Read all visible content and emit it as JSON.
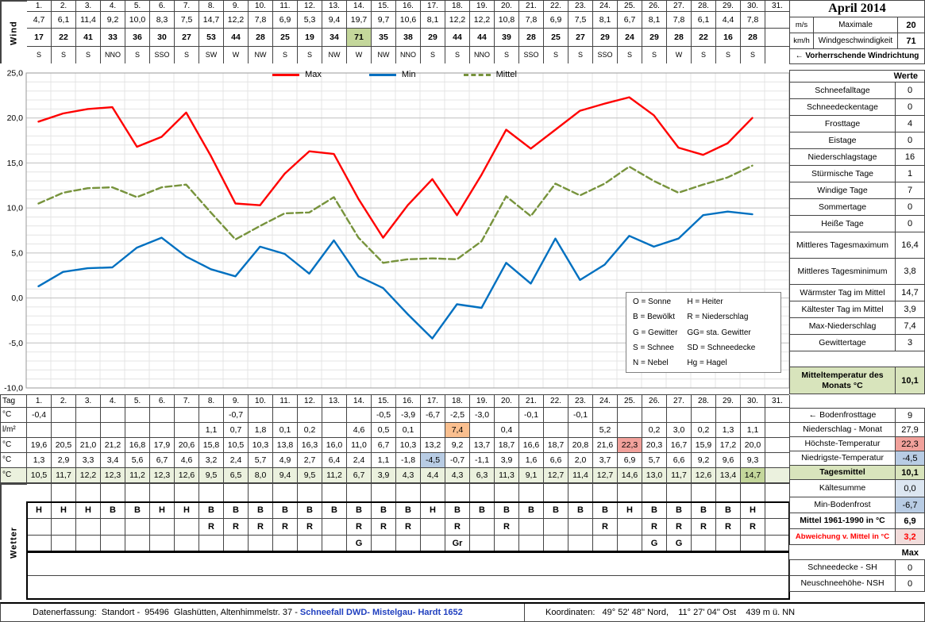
{
  "month_title": "April 2014",
  "row_labels": {
    "wind": "Wind",
    "tag": "Tag",
    "celsius": "°C",
    "lm2": "l/m²",
    "wetter": "Wetter"
  },
  "days": [
    "1.",
    "2.",
    "3.",
    "4.",
    "5.",
    "6.",
    "7.",
    "8.",
    "9.",
    "10.",
    "11.",
    "12.",
    "13.",
    "14.",
    "15.",
    "16.",
    "17.",
    "18.",
    "19.",
    "20.",
    "21.",
    "22.",
    "23.",
    "24.",
    "25.",
    "26.",
    "27.",
    "28.",
    "29.",
    "30.",
    "31."
  ],
  "wind": {
    "ms_unit": "m/s",
    "kmh_unit": "km/h",
    "max_label1": "Maximale",
    "max_label2": "Windgeschwindigkeit",
    "max_ms": "20",
    "max_kmh": "71",
    "dir_note": "← Vorherrschende Windrichtung",
    "ms": [
      "4,7",
      "6,1",
      "11,4",
      "9,2",
      "10,0",
      "8,3",
      "7,5",
      "14,7",
      "12,2",
      "7,8",
      "6,9",
      "5,3",
      "9,4",
      "19,7",
      "9,7",
      "10,6",
      "8,1",
      "12,2",
      "12,2",
      "10,8",
      "7,8",
      "6,9",
      "7,5",
      "8,1",
      "6,7",
      "8,1",
      "7,8",
      "6,1",
      "4,4",
      "7,8",
      ""
    ],
    "kmh": [
      "17",
      "22",
      "41",
      "33",
      "36",
      "30",
      "27",
      "53",
      "44",
      "28",
      "25",
      "19",
      "34",
      "71",
      "35",
      "38",
      "29",
      "44",
      "44",
      "39",
      "28",
      "25",
      "27",
      "29",
      "24",
      "29",
      "28",
      "22",
      "16",
      "28",
      ""
    ],
    "dir": [
      "S",
      "S",
      "S",
      "NNO",
      "S",
      "SSO",
      "S",
      "SW",
      "W",
      "NW",
      "S",
      "S",
      "NW",
      "W",
      "NW",
      "NNO",
      "S",
      "S",
      "NNO",
      "S",
      "SSO",
      "S",
      "S",
      "SSO",
      "S",
      "S",
      "W",
      "S",
      "S",
      "S",
      ""
    ]
  },
  "daily": {
    "bodenfrost": [
      "-0,4",
      "",
      "",
      "",
      "",
      "",
      "",
      "",
      "-0,7",
      "",
      "",
      "",
      "",
      "",
      "-0,5",
      "-3,9",
      "-6,7",
      "-2,5",
      "-3,0",
      "",
      "-0,1",
      "",
      "-0,1",
      "",
      "",
      "",
      "",
      "",
      "",
      "",
      ""
    ],
    "precip": [
      "",
      "",
      "",
      "",
      "",
      "",
      "",
      "1,1",
      "0,7",
      "1,8",
      "0,1",
      "0,2",
      "",
      "4,6",
      "0,5",
      "0,1",
      "",
      "7,4",
      "",
      "0,4",
      "",
      "",
      "",
      "5,2",
      "",
      "0,2",
      "3,0",
      "0,2",
      "1,3",
      "1,1",
      ""
    ],
    "tmax": [
      "19,6",
      "20,5",
      "21,0",
      "21,2",
      "16,8",
      "17,9",
      "20,6",
      "15,8",
      "10,5",
      "10,3",
      "13,8",
      "16,3",
      "16,0",
      "11,0",
      "6,7",
      "10,3",
      "13,2",
      "9,2",
      "13,7",
      "18,7",
      "16,6",
      "18,7",
      "20,8",
      "21,6",
      "22,3",
      "20,3",
      "16,7",
      "15,9",
      "17,2",
      "20,0",
      ""
    ],
    "tmin": [
      "1,3",
      "2,9",
      "3,3",
      "3,4",
      "5,6",
      "6,7",
      "4,6",
      "3,2",
      "2,4",
      "5,7",
      "4,9",
      "2,7",
      "6,4",
      "2,4",
      "1,1",
      "-1,8",
      "-4,5",
      "-0,7",
      "-1,1",
      "3,9",
      "1,6",
      "6,6",
      "2,0",
      "3,7",
      "6,9",
      "5,7",
      "6,6",
      "9,2",
      "9,6",
      "9,3",
      ""
    ],
    "tmittel": [
      "10,5",
      "11,7",
      "12,2",
      "12,3",
      "11,2",
      "12,3",
      "12,6",
      "9,5",
      "6,5",
      "8,0",
      "9,4",
      "9,5",
      "11,2",
      "6,7",
      "3,9",
      "4,3",
      "4,4",
      "4,3",
      "6,3",
      "11,3",
      "9,1",
      "12,7",
      "11,4",
      "12,7",
      "14,6",
      "13,0",
      "11,7",
      "12,6",
      "13,4",
      "14,7",
      ""
    ]
  },
  "weather": {
    "sky": [
      "H",
      "H",
      "H",
      "B",
      "B",
      "H",
      "H",
      "B",
      "B",
      "B",
      "B",
      "B",
      "B",
      "B",
      "B",
      "B",
      "H",
      "B",
      "B",
      "B",
      "B",
      "B",
      "B",
      "B",
      "H",
      "B",
      "B",
      "B",
      "B",
      "H",
      ""
    ],
    "rain": [
      "",
      "",
      "",
      "",
      "",
      "",
      "",
      "R",
      "R",
      "R",
      "R",
      "R",
      "",
      "R",
      "R",
      "R",
      "",
      "R",
      "",
      "R",
      "",
      "",
      "",
      "R",
      "",
      "R",
      "R",
      "R",
      "R",
      "R",
      ""
    ],
    "gewitter": [
      "",
      "",
      "",
      "",
      "",
      "",
      "",
      "",
      "",
      "",
      "",
      "",
      "",
      "G",
      "",
      "",
      "",
      "Gr",
      "",
      "",
      "",
      "",
      "",
      "",
      "",
      "G",
      "G",
      "",
      "",
      "",
      ""
    ]
  },
  "highlights": {
    "kmh_max_day": 14,
    "precip_max_day": 18,
    "tmax_max_day": 25,
    "tmin_min_day": 17,
    "tmittel_max_day": 30
  },
  "stats": {
    "header": "Werte",
    "rows": [
      {
        "label": "Schneefalltage",
        "value": "0"
      },
      {
        "label": "Schneedeckentage",
        "value": "0"
      },
      {
        "label": "Frosttage",
        "value": "4"
      },
      {
        "label": "Eistage",
        "value": "0"
      },
      {
        "label": "Niederschlagstage",
        "value": "16"
      },
      {
        "label": "Stürmische Tage",
        "value": "1"
      },
      {
        "label": "Windige Tage",
        "value": "7"
      },
      {
        "label": "Sommertage",
        "value": "0"
      },
      {
        "label": "Heiße Tage",
        "value": "0"
      },
      {
        "label": "Mittleres Tagesmaximum",
        "value": "16,4",
        "twoline": true
      },
      {
        "label": "Mittleres Tagesminimum",
        "value": "3,8",
        "twoline": true
      },
      {
        "label": "Wärmster Tag im Mittel",
        "value": "14,7"
      },
      {
        "label": "Kältester Tag im Mittel",
        "value": "3,9"
      },
      {
        "label": "Max-Niederschlag",
        "value": "7,4"
      },
      {
        "label": "Gewittertage",
        "value": "3"
      },
      {
        "label": "Mitteltemperatur des Monats °C",
        "value": "10,1",
        "twoline": true,
        "green": true
      }
    ]
  },
  "summary": {
    "rows": [
      {
        "label": "← Bodenfrosttage",
        "value": "9"
      },
      {
        "label": "Niederschlag - Monat",
        "value": "27,9"
      },
      {
        "label": "Höchste-Temperatur",
        "value": "22,3",
        "value_highlight": "pink"
      },
      {
        "label": "Niedrigste-Temperatur",
        "value": "-4,5",
        "value_highlight": "blue"
      },
      {
        "label": "Tagesmittel",
        "value": "10,1",
        "label_highlight": "green",
        "value_highlight": "green",
        "bold": true
      },
      {
        "label": "Kältesumme",
        "value": "0,0",
        "value_highlight": "lightblue"
      },
      {
        "label": "Min-Bodenfrost",
        "value": "-6,7",
        "value_highlight": "blue"
      },
      {
        "label": "Mittel 1961-1990 in °C",
        "value": "6,9",
        "bold": true
      },
      {
        "label": "Abweichung v. Mittel in °C",
        "value": "3,2",
        "red": true,
        "bold": true,
        "small": true,
        "value_highlight": "rose"
      }
    ],
    "max_header": "Max",
    "snow": [
      {
        "label": "Schneedecke -  SH",
        "value": "0"
      },
      {
        "label": "Neuschneehöhe- NSH",
        "value": "0"
      }
    ]
  },
  "weather_legend": {
    "left": [
      "O = Sonne",
      "B = Bewölkt",
      "G = Gewitter",
      "S = Schnee",
      "N = Nebel"
    ],
    "right": [
      "H = Heiter",
      "R = Niederschlag",
      "GG= sta. Gewitter",
      "SD = Schneedecke",
      "Hg = Hagel"
    ]
  },
  "footer": {
    "left_prefix": "Datenerfassung:  Standort -  95496  Glashütten, Altenhimmelstr. 37 - ",
    "left_blue": "Schneefall DWD- Mistelgau- Hardt 1652",
    "right": "Koordinaten:   49° 52' 48'' Nord,    11° 27' 04'' Ost    439 m ü. NN"
  },
  "colors": {
    "hl_green": "#C4D79B",
    "hl_orange": "#FABF8F",
    "hl_pink": "#F1A19B",
    "hl_blue": "#B8CCE4",
    "row_green": "#EBF1DE",
    "stat_green": "#D8E4BC",
    "hl_lightblue": "#DCE6F1",
    "hl_rose": "#F2DCDB",
    "red": "#FF0000",
    "footer_blue": "#1F3FBF",
    "grid_major": "#BFBFBF",
    "grid_minor": "#E4E4E4"
  },
  "chart_data": {
    "type": "line",
    "x": [
      1,
      2,
      3,
      4,
      5,
      6,
      7,
      8,
      9,
      10,
      11,
      12,
      13,
      14,
      15,
      16,
      17,
      18,
      19,
      20,
      21,
      22,
      23,
      24,
      25,
      26,
      27,
      28,
      29,
      30
    ],
    "series": [
      {
        "name": "Max",
        "color": "#FF0000",
        "style": "solid",
        "values": [
          19.6,
          20.5,
          21.0,
          21.2,
          16.8,
          17.9,
          20.6,
          15.8,
          10.5,
          10.3,
          13.8,
          16.3,
          16.0,
          11.0,
          6.7,
          10.3,
          13.2,
          9.2,
          13.7,
          18.7,
          16.6,
          18.7,
          20.8,
          21.6,
          22.3,
          20.3,
          16.7,
          15.9,
          17.2,
          20.0
        ]
      },
      {
        "name": "Min",
        "color": "#0070C0",
        "style": "solid",
        "values": [
          1.3,
          2.9,
          3.3,
          3.4,
          5.6,
          6.7,
          4.6,
          3.2,
          2.4,
          5.7,
          4.9,
          2.7,
          6.4,
          2.4,
          1.1,
          -1.8,
          -4.5,
          -0.7,
          -1.1,
          3.9,
          1.6,
          6.6,
          2.0,
          3.7,
          6.9,
          5.7,
          6.6,
          9.2,
          9.6,
          9.3
        ]
      },
      {
        "name": "Mittel",
        "color": "#77933C",
        "style": "dashed",
        "values": [
          10.5,
          11.7,
          12.2,
          12.3,
          11.2,
          12.3,
          12.6,
          9.5,
          6.5,
          8.0,
          9.4,
          9.5,
          11.2,
          6.7,
          3.9,
          4.3,
          4.4,
          4.3,
          6.3,
          11.3,
          9.1,
          12.7,
          11.4,
          12.7,
          14.6,
          13.0,
          11.7,
          12.6,
          13.4,
          14.7
        ]
      }
    ],
    "xlim": [
      1,
      31
    ],
    "ylim": [
      -10,
      25
    ],
    "ytick_labels": [
      "25,0",
      "20,0",
      "15,0",
      "10,0",
      "5,0",
      "0,0",
      "-5,0",
      "-10,0"
    ],
    "grid": true,
    "legend_position": "top-center"
  }
}
